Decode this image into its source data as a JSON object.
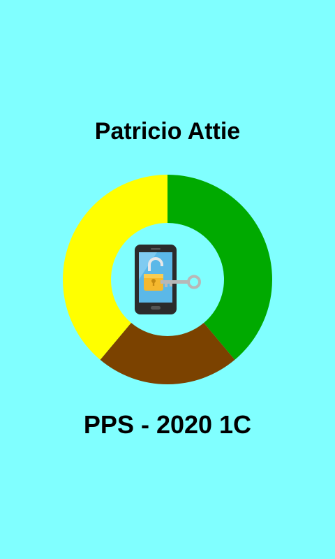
{
  "splash": {
    "author_name": "Patricio Attie",
    "course_label": "PPS - 2020 1C"
  },
  "colors": {
    "background": "#80FFFF",
    "segment_green": "#00AA00",
    "segment_brown": "#7B4200",
    "segment_yellow": "#FFFF00"
  },
  "logo": {
    "icon": "phone-unlock-key-icon",
    "segments": [
      {
        "color": "#00AA00",
        "fraction": 0.3889
      },
      {
        "color": "#7B4200",
        "fraction": 0.2222
      },
      {
        "color": "#FFFF00",
        "fraction": 0.3889
      }
    ]
  }
}
